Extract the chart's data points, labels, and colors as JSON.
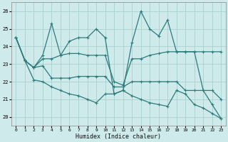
{
  "xlabel": "Humidex (Indice chaleur)",
  "bg_color": "#ceeaea",
  "grid_color": "#aad0d0",
  "line_color": "#2d7b7b",
  "xlim": [
    -0.5,
    23.5
  ],
  "ylim": [
    19.5,
    26.5
  ],
  "yticks": [
    20,
    21,
    22,
    23,
    24,
    25,
    26
  ],
  "xticks": [
    0,
    1,
    2,
    3,
    4,
    5,
    6,
    7,
    8,
    9,
    10,
    11,
    12,
    13,
    14,
    15,
    16,
    17,
    18,
    19,
    20,
    21,
    22,
    23
  ],
  "series": [
    [
      24.5,
      23.2,
      22.8,
      23.5,
      25.3,
      23.5,
      24.3,
      24.5,
      24.5,
      25.0,
      24.5,
      21.3,
      21.5,
      24.2,
      26.0,
      25.0,
      24.6,
      25.5,
      23.7,
      23.7,
      23.7,
      21.5,
      20.7,
      19.9
    ],
    [
      24.5,
      23.2,
      22.8,
      23.3,
      23.3,
      23.5,
      23.6,
      23.6,
      23.5,
      23.5,
      23.5,
      22.0,
      21.8,
      23.3,
      23.3,
      23.5,
      23.6,
      23.7,
      23.7,
      23.7,
      23.7,
      23.7,
      23.7,
      23.7
    ],
    [
      24.5,
      23.2,
      22.8,
      22.9,
      22.2,
      22.2,
      22.2,
      22.3,
      22.3,
      22.3,
      22.3,
      21.7,
      21.7,
      22.0,
      22.0,
      22.0,
      22.0,
      22.0,
      22.0,
      21.5,
      21.5,
      21.5,
      21.5,
      21.0
    ],
    [
      24.5,
      23.2,
      22.1,
      22.0,
      21.7,
      21.5,
      21.3,
      21.2,
      21.0,
      20.8,
      21.3,
      21.3,
      21.5,
      21.2,
      21.0,
      20.8,
      20.7,
      20.6,
      21.5,
      21.3,
      20.7,
      20.5,
      20.2,
      19.9
    ]
  ],
  "marker": "+",
  "marker_size": 3,
  "linewidth": 0.9
}
